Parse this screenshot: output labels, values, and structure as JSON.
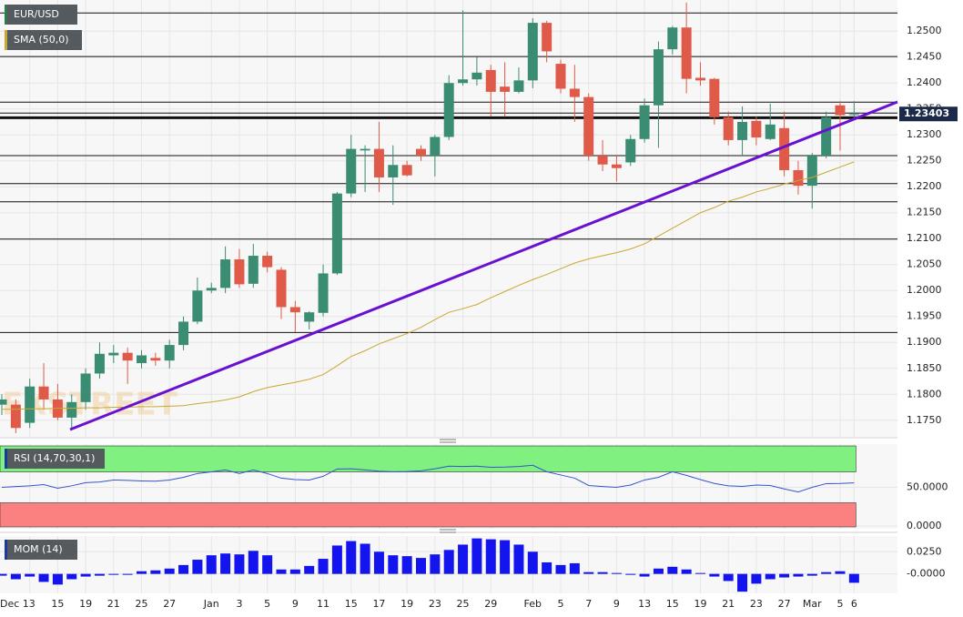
{
  "chart_data": [
    {
      "type": "candlestick",
      "title": "EUR/USD",
      "watermark": "FXSTREET",
      "sma_name": "SMA (50,0)",
      "sma_color": "#c8a830",
      "up_color": "#3a8c72",
      "down_color": "#df5a48",
      "categories": [
        null,
        null,
        "Dec 13",
        null,
        "15",
        null,
        "19",
        null,
        "21",
        null,
        "25",
        null,
        "27",
        null,
        null,
        "Jan",
        null,
        "3",
        null,
        "5",
        null,
        "9",
        null,
        "11",
        null,
        "15",
        null,
        "17",
        null,
        "19",
        null,
        "23",
        null,
        "25",
        null,
        "29",
        null,
        null,
        "Feb",
        null,
        "5",
        null,
        "7",
        null,
        "9",
        null,
        "13",
        null,
        "15",
        null,
        "19",
        null,
        "21",
        null,
        "23",
        null,
        "27",
        null,
        "Mar",
        null,
        "5",
        "6"
      ],
      "open": [
        1.178,
        1.178,
        1.1745,
        1.1815,
        1.179,
        1.1755,
        1.1785,
        1.184,
        1.1875,
        1.188,
        1.186,
        1.187,
        1.1865,
        1.1895,
        1.194,
        1.2,
        1.2005,
        1.206,
        1.2013,
        1.2067,
        1.204,
        1.1968,
        1.194,
        1.1957,
        1.2033,
        1.2187,
        1.227,
        1.2273,
        1.2218,
        1.2242,
        1.2273,
        1.226,
        1.2296,
        1.24,
        1.2407,
        1.2425,
        1.2393,
        1.2383,
        1.2405,
        1.2516,
        1.2437,
        1.2389,
        1.2373,
        1.226,
        1.2243,
        1.2247,
        1.2292,
        1.2357,
        1.2465,
        1.2507,
        1.241,
        1.2408,
        1.2334,
        1.229,
        1.2327,
        1.2292,
        1.2313,
        1.2232,
        1.2202,
        1.226,
        1.2357,
        1.2338
      ],
      "high": [
        1.18,
        1.179,
        1.183,
        1.186,
        1.182,
        1.18,
        1.185,
        1.19,
        1.1895,
        1.189,
        1.1885,
        1.188,
        1.1905,
        1.195,
        1.2025,
        1.2015,
        1.2085,
        1.208,
        1.209,
        1.2075,
        1.2045,
        1.198,
        1.196,
        1.205,
        1.219,
        1.23,
        1.228,
        1.2325,
        1.228,
        1.225,
        1.228,
        1.23,
        1.2415,
        1.254,
        1.245,
        1.2435,
        1.244,
        1.243,
        1.2525,
        1.252,
        1.2445,
        1.2435,
        1.238,
        1.229,
        1.226,
        1.23,
        1.237,
        1.248,
        1.251,
        1.2555,
        1.244,
        1.241,
        1.2345,
        1.2355,
        1.2335,
        1.236,
        1.2345,
        1.225,
        1.2265,
        1.2345,
        1.2365,
        1.2365
      ],
      "low": [
        1.176,
        1.1725,
        1.1735,
        1.177,
        1.175,
        1.1735,
        1.177,
        1.183,
        1.186,
        1.182,
        1.185,
        1.1855,
        1.185,
        1.1885,
        1.1935,
        1.1995,
        1.1995,
        1.2005,
        1.2005,
        1.2035,
        1.1945,
        1.192,
        1.1925,
        1.195,
        1.203,
        1.218,
        1.219,
        1.219,
        1.2165,
        1.222,
        1.225,
        1.222,
        1.229,
        1.2395,
        1.2395,
        1.2335,
        1.2335,
        1.238,
        1.239,
        1.244,
        1.238,
        1.2325,
        1.225,
        1.223,
        1.221,
        1.224,
        1.2285,
        1.2275,
        1.2455,
        1.238,
        1.2395,
        1.232,
        1.228,
        1.226,
        1.228,
        1.229,
        1.222,
        1.2185,
        1.2158,
        1.2255,
        1.227,
        1.233
      ],
      "close": [
        1.179,
        1.1735,
        1.1815,
        1.179,
        1.1755,
        1.1785,
        1.184,
        1.1878,
        1.188,
        1.1865,
        1.1875,
        1.1865,
        1.1895,
        1.194,
        1.2,
        1.2005,
        1.206,
        1.2012,
        1.2067,
        1.2045,
        1.1968,
        1.1958,
        1.1958,
        1.2033,
        1.2187,
        1.2273,
        1.2273,
        1.2218,
        1.2242,
        1.2222,
        1.226,
        1.2296,
        1.24,
        1.2407,
        1.242,
        1.2383,
        1.2383,
        1.2405,
        1.2516,
        1.2461,
        1.2389,
        1.2373,
        1.226,
        1.2243,
        1.2236,
        1.2292,
        1.2357,
        1.2465,
        1.2507,
        1.2408,
        1.2405,
        1.2334,
        1.229,
        1.2325,
        1.2295,
        1.232,
        1.2232,
        1.2202,
        1.226,
        1.2334,
        1.2338,
        1.234
      ],
      "sma": [
        1.1771,
        1.1771,
        1.1772,
        1.1772,
        1.1773,
        1.1773,
        1.1774,
        1.1774,
        1.1775,
        1.1775,
        1.1776,
        1.1776,
        1.1777,
        1.1778,
        1.1782,
        1.1785,
        1.1789,
        1.1795,
        1.1805,
        1.1813,
        1.1818,
        1.1823,
        1.1829,
        1.1838,
        1.1855,
        1.1873,
        1.1884,
        1.1897,
        1.1907,
        1.1917,
        1.1929,
        1.1944,
        1.1958,
        1.1965,
        1.1973,
        1.1986,
        1.1998,
        1.201,
        1.2021,
        1.2031,
        1.2042,
        1.2053,
        1.2061,
        1.2067,
        1.2073,
        1.208,
        1.209,
        1.2105,
        1.212,
        1.2135,
        1.215,
        1.216,
        1.2172,
        1.218,
        1.219,
        1.2197,
        1.2205,
        1.2212,
        1.2218,
        1.2228,
        1.2238,
        1.2248
      ],
      "levels": [
        {
          "value": 1.2535,
          "bold": false
        },
        {
          "value": 1.2451,
          "bold": false
        },
        {
          "value": 1.2363,
          "bold": false
        },
        {
          "value": 1.2342,
          "bold": false
        },
        {
          "value": 1.2333,
          "bold": true
        },
        {
          "value": 1.226,
          "bold": false
        },
        {
          "value": 1.2206,
          "bold": false
        },
        {
          "value": 1.2171,
          "bold": false
        },
        {
          "value": 1.2099,
          "bold": false
        },
        {
          "value": 1.1919,
          "bold": false
        }
      ],
      "last_price": 1.23403,
      "ylim": [
        1.1718,
        1.256
      ],
      "yticks": [
        {
          "value": 1.175,
          "label": "1.1750"
        },
        {
          "value": 1.18,
          "label": "1.1800"
        },
        {
          "value": 1.185,
          "label": "1.1850"
        },
        {
          "value": 1.19,
          "label": "1.1900"
        },
        {
          "value": 1.195,
          "label": "1.1950"
        },
        {
          "value": 1.2,
          "label": "1.2000"
        },
        {
          "value": 1.205,
          "label": "1.2050"
        },
        {
          "value": 1.21,
          "label": "1.2100"
        },
        {
          "value": 1.215,
          "label": "1.2150"
        },
        {
          "value": 1.22,
          "label": "1.2200"
        },
        {
          "value": 1.225,
          "label": "1.2250"
        },
        {
          "value": 1.23,
          "label": "1.2300"
        },
        {
          "value": 1.235,
          "label": "1.2350"
        },
        {
          "value": 1.24,
          "label": "1.2400"
        },
        {
          "value": 1.245,
          "label": "1.2450"
        },
        {
          "value": 1.25,
          "label": "1.2500"
        }
      ],
      "grid": true
    },
    {
      "type": "line",
      "title": "RSI (14,70,30,1)",
      "color": "#3355cc",
      "zones": {
        "upper": 70,
        "lower": 30,
        "upper_color": "#80f080",
        "lower_color": "#fb8080"
      },
      "values": [
        50,
        51,
        52,
        53.6,
        48.8,
        52,
        56,
        57,
        59.5,
        59,
        58.3,
        58,
        59.5,
        63,
        67.9,
        70,
        72.6,
        67.9,
        72.6,
        67.9,
        61.9,
        60,
        59.5,
        64.3,
        73.8,
        74,
        72.6,
        71,
        70.2,
        70.5,
        71.4,
        74,
        77.4,
        77,
        77.4,
        76,
        76.2,
        77,
        78.6,
        70.2,
        66,
        61.9,
        52.4,
        51,
        50,
        53,
        59.5,
        63,
        70.2,
        65.5,
        60,
        55,
        52,
        51.2,
        53,
        52.4,
        48,
        44,
        50,
        54.8,
        55,
        55.7
      ],
      "ylim": [
        -3.6,
        106
      ],
      "yticks": [
        {
          "value": 50,
          "label": "50.0000"
        },
        {
          "value": 0,
          "label": "0.0000"
        }
      ]
    },
    {
      "type": "bar",
      "title": "MOM (14)",
      "color": "#1414ee",
      "values": [
        -0.002,
        -0.006,
        -0.003,
        -0.009,
        -0.012,
        -0.006,
        -0.003,
        -0.002,
        -0.001,
        -0.001,
        0.003,
        0.004,
        0.006,
        0.01,
        0.016,
        0.021,
        0.023,
        0.022,
        0.026,
        0.021,
        0.005,
        0.005,
        0.009,
        0.017,
        0.032,
        0.037,
        0.034,
        0.025,
        0.021,
        0.02,
        0.018,
        0.022,
        0.027,
        0.033,
        0.04,
        0.039,
        0.038,
        0.033,
        0.025,
        0.013,
        0.01,
        0.012,
        0.002,
        0.002,
        0.001,
        -0.001,
        -0.003,
        0.006,
        0.008,
        0.005,
        0.001,
        -0.003,
        -0.008,
        -0.02,
        -0.011,
        -0.006,
        -0.004,
        -0.003,
        -0.002,
        0.002,
        0.003,
        -0.01
      ],
      "ylim": [
        -0.0219,
        0.0427
      ],
      "yticks": [
        {
          "value": 0.025,
          "label": "0.0250"
        },
        {
          "value": 0,
          "label": "-0.0000"
        }
      ]
    }
  ]
}
